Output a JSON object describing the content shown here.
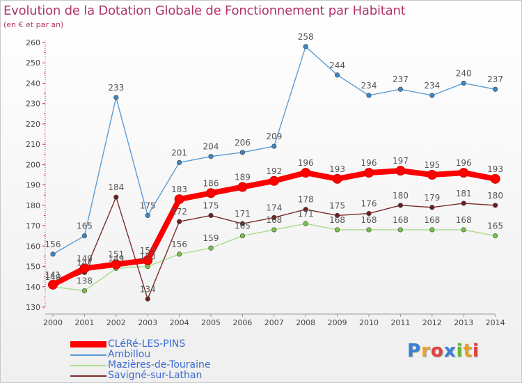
{
  "page": {
    "title": "Evolution de la Dotation Globale de Fonctionnement par Habitant",
    "subtitle": "(en € et par an)"
  },
  "chart_data": {
    "type": "line",
    "title": "Evolution de la Dotation Globale de Fonctionnement par Habitant",
    "subtitle": "(en € et par an)",
    "x": [
      "2000",
      "2001",
      "2002",
      "2003",
      "2004",
      "2005",
      "2006",
      "2007",
      "2008",
      "2009",
      "2010",
      "2011",
      "2012",
      "2013",
      "2014"
    ],
    "ylim": [
      130,
      260
    ],
    "yticks": [
      130,
      140,
      150,
      160,
      170,
      180,
      190,
      200,
      210,
      220,
      230,
      240,
      250,
      260
    ],
    "grid": false,
    "legend_position": "bottom-left",
    "series": [
      {
        "name": "Ambillou",
        "color": "#5a9bd5",
        "marker_color": "#3d86c6",
        "values": [
          156,
          165,
          233,
          175,
          201,
          204,
          206,
          209,
          258,
          244,
          234,
          237,
          234,
          240,
          237
        ],
        "labels": [
          "156",
          "165",
          "233",
          "175",
          "201",
          "204",
          "206",
          "209",
          "258",
          "244",
          "234",
          "237",
          "234",
          "240",
          "237"
        ]
      },
      {
        "name": "Mazières-de-Touraine",
        "color": "#a8dc8a",
        "marker_color": "#78c24a",
        "values": [
          140,
          138,
          149,
          150,
          156,
          159,
          165,
          168,
          171,
          168,
          168,
          168,
          168,
          168,
          165
        ],
        "labels": [
          "140",
          "138",
          "149",
          "150",
          "156",
          "159",
          "165",
          "168",
          "171",
          "168",
          "168",
          "168",
          "168",
          "168",
          "165"
        ]
      },
      {
        "name": "Savigné-sur-Lathan",
        "color": "#7a2a2a",
        "marker_color": "#6a1e1e",
        "values": [
          141,
          147,
          184,
          134,
          172,
          175,
          171,
          174,
          178,
          175,
          176,
          180,
          179,
          181,
          180
        ],
        "labels": [
          "141",
          "147",
          "184",
          "134",
          "172",
          "175",
          "171",
          "174",
          "178",
          "175",
          "176",
          "180",
          "179",
          "181",
          "180"
        ]
      },
      {
        "name": "CLéRé-LES-PINS",
        "color": "#ff0000",
        "marker_color": "#ff0000",
        "values": [
          141,
          149,
          151,
          153,
          183,
          186,
          189,
          192,
          196,
          193,
          196,
          197,
          195,
          196,
          193
        ],
        "labels": [
          "141",
          "149",
          "151",
          "153",
          "183",
          "186",
          "189",
          "192",
          "196",
          "193",
          "196",
          "197",
          "195",
          "196",
          "193"
        ]
      }
    ],
    "legend_order": [
      "CLéRé-LES-PINS",
      "Ambillou",
      "Mazières-de-Touraine",
      "Savigné-sur-Lathan"
    ]
  },
  "logo": {
    "letters": [
      "P",
      "r",
      "o",
      "x",
      "i",
      "t",
      "i"
    ],
    "colors": [
      "#3a7fd6",
      "#f0a020",
      "#e04040",
      "#3a7fd6",
      "#66bb33",
      "#f0a020",
      "#e04040"
    ]
  }
}
